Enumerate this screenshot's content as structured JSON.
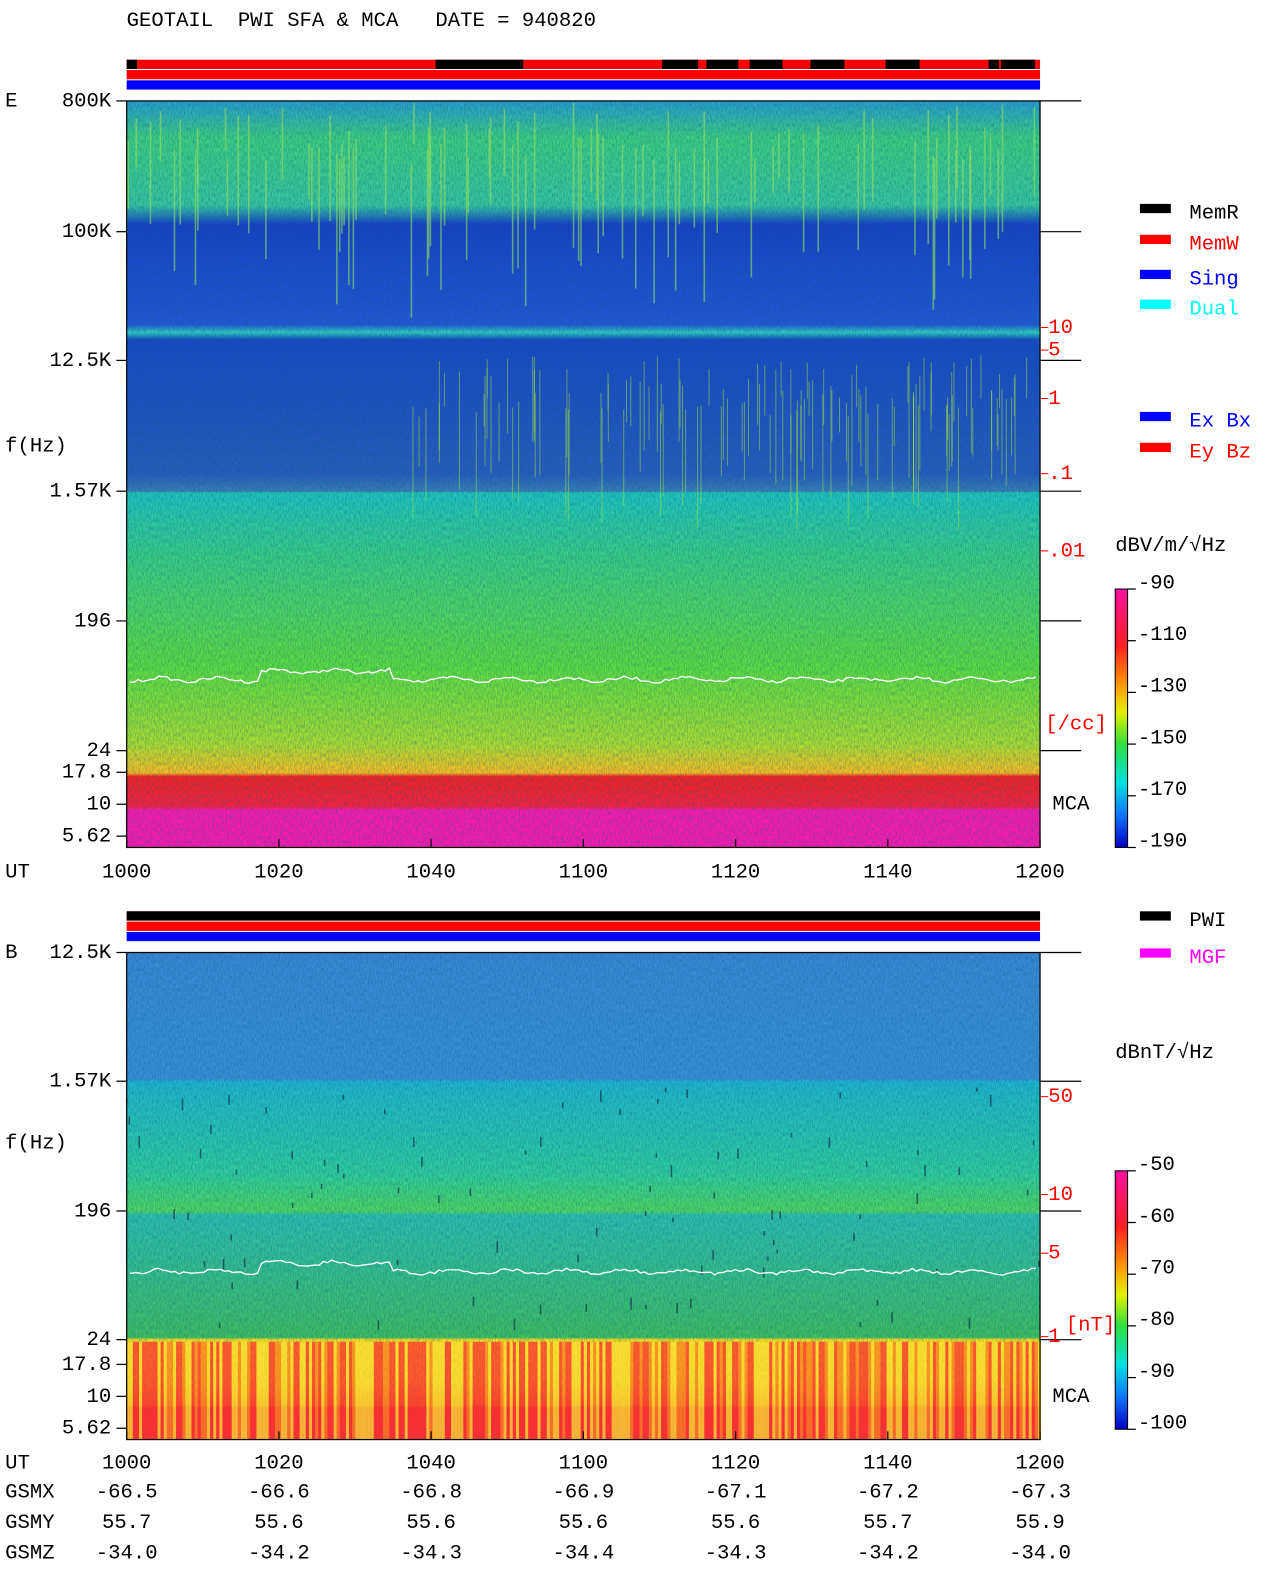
{
  "title": "GEOTAIL  PWI SFA & MCA   DATE = 940820",
  "x_axis": {
    "label": "UT",
    "ticks": [
      "1000",
      "1020",
      "1040",
      "1100",
      "1120",
      "1140",
      "1200"
    ]
  },
  "panels": [
    {
      "label": "E",
      "y_label": "f(Hz)",
      "y_ticks": [
        "800K",
        "100K",
        "12.5K",
        "1.57K",
        "196",
        "24",
        "17.8",
        "10",
        "5.62"
      ],
      "density_ticks": [
        "10",
        "5",
        "1",
        ".1",
        ".01"
      ],
      "density_unit": "[/cc]",
      "mca_label": "MCA",
      "colorbar_unit": "dBV/m/√Hz",
      "colorbar_ticks": [
        "-90",
        "-110",
        "-130",
        "-150",
        "-170",
        "-190"
      ],
      "legend": [
        {
          "label": "MemR",
          "color": "#000000"
        },
        {
          "label": "MemW",
          "color": "#ff0000"
        },
        {
          "label": "Sing",
          "color": "#0000ff"
        },
        {
          "label": "Dual",
          "color": "#00ffff"
        },
        {
          "label": "Ex Bx",
          "color": "#0000ff"
        },
        {
          "label": "Ey Bz",
          "color": "#ff0000"
        }
      ]
    },
    {
      "label": "B",
      "y_label": "f(Hz)",
      "y_ticks": [
        "12.5K",
        "1.57K",
        "196",
        "24",
        "17.8",
        "10",
        "5.62"
      ],
      "density_ticks": [
        "50",
        "10",
        "5",
        "1"
      ],
      "density_unit": "[nT]",
      "mca_label": "MCA",
      "colorbar_unit": "dBnT/√Hz",
      "colorbar_ticks": [
        "-50",
        "-60",
        "-70",
        "-80",
        "-90",
        "-100"
      ],
      "legend": [
        {
          "label": "PWI",
          "color": "#000000"
        },
        {
          "label": "MGF",
          "color": "#ff00ff"
        }
      ]
    }
  ],
  "orbit": [
    {
      "label": "GSMX",
      "values": [
        "-66.5",
        "-66.6",
        "-66.8",
        "-66.9",
        "-67.1",
        "-67.2",
        "-67.3"
      ]
    },
    {
      "label": "GSMY",
      "values": [
        "55.7",
        "55.6",
        "55.6",
        "55.6",
        "55.6",
        "55.7",
        "55.9"
      ]
    },
    {
      "label": "GSMZ",
      "values": [
        "-34.0",
        "-34.2",
        "-34.3",
        "-34.4",
        "-34.3",
        "-34.2",
        "-34.0"
      ]
    }
  ]
}
